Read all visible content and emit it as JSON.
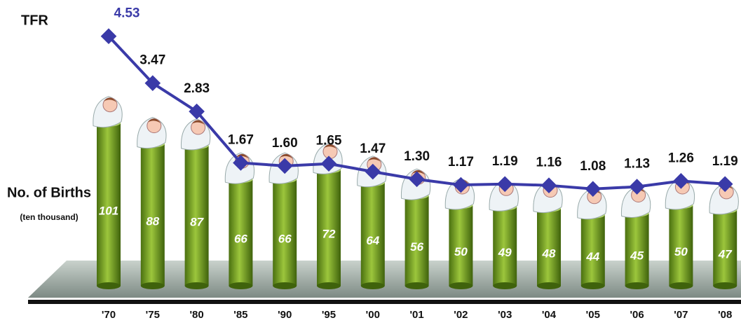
{
  "chart_data": {
    "type": "bar",
    "categories": [
      "'70",
      "'75",
      "'80",
      "'85",
      "'90",
      "'95",
      "'00",
      "'01",
      "'02",
      "'03",
      "'04",
      "'05",
      "'06",
      "'07",
      "'08"
    ],
    "series": [
      {
        "name": "No. of Births",
        "unit_label": "(ten thousand)",
        "type": "bar",
        "color": "#6b9a1f",
        "values": [
          101,
          88,
          87,
          66,
          66,
          72,
          64,
          56,
          50,
          49,
          48,
          44,
          45,
          50,
          47
        ]
      },
      {
        "name": "TFR",
        "type": "line",
        "color": "#3a3aa8",
        "values": [
          4.53,
          3.47,
          2.83,
          1.67,
          1.6,
          1.65,
          1.47,
          1.3,
          1.17,
          1.19,
          1.16,
          1.08,
          1.13,
          1.26,
          1.19
        ],
        "value_labels": [
          "4.53",
          "3.47",
          "2.83",
          "1.67",
          "1.60",
          "1.65",
          "1.47",
          "1.30",
          "1.17",
          "1.19",
          "1.16",
          "1.08",
          "1.13",
          "1.26",
          "1.19"
        ]
      }
    ]
  }
}
